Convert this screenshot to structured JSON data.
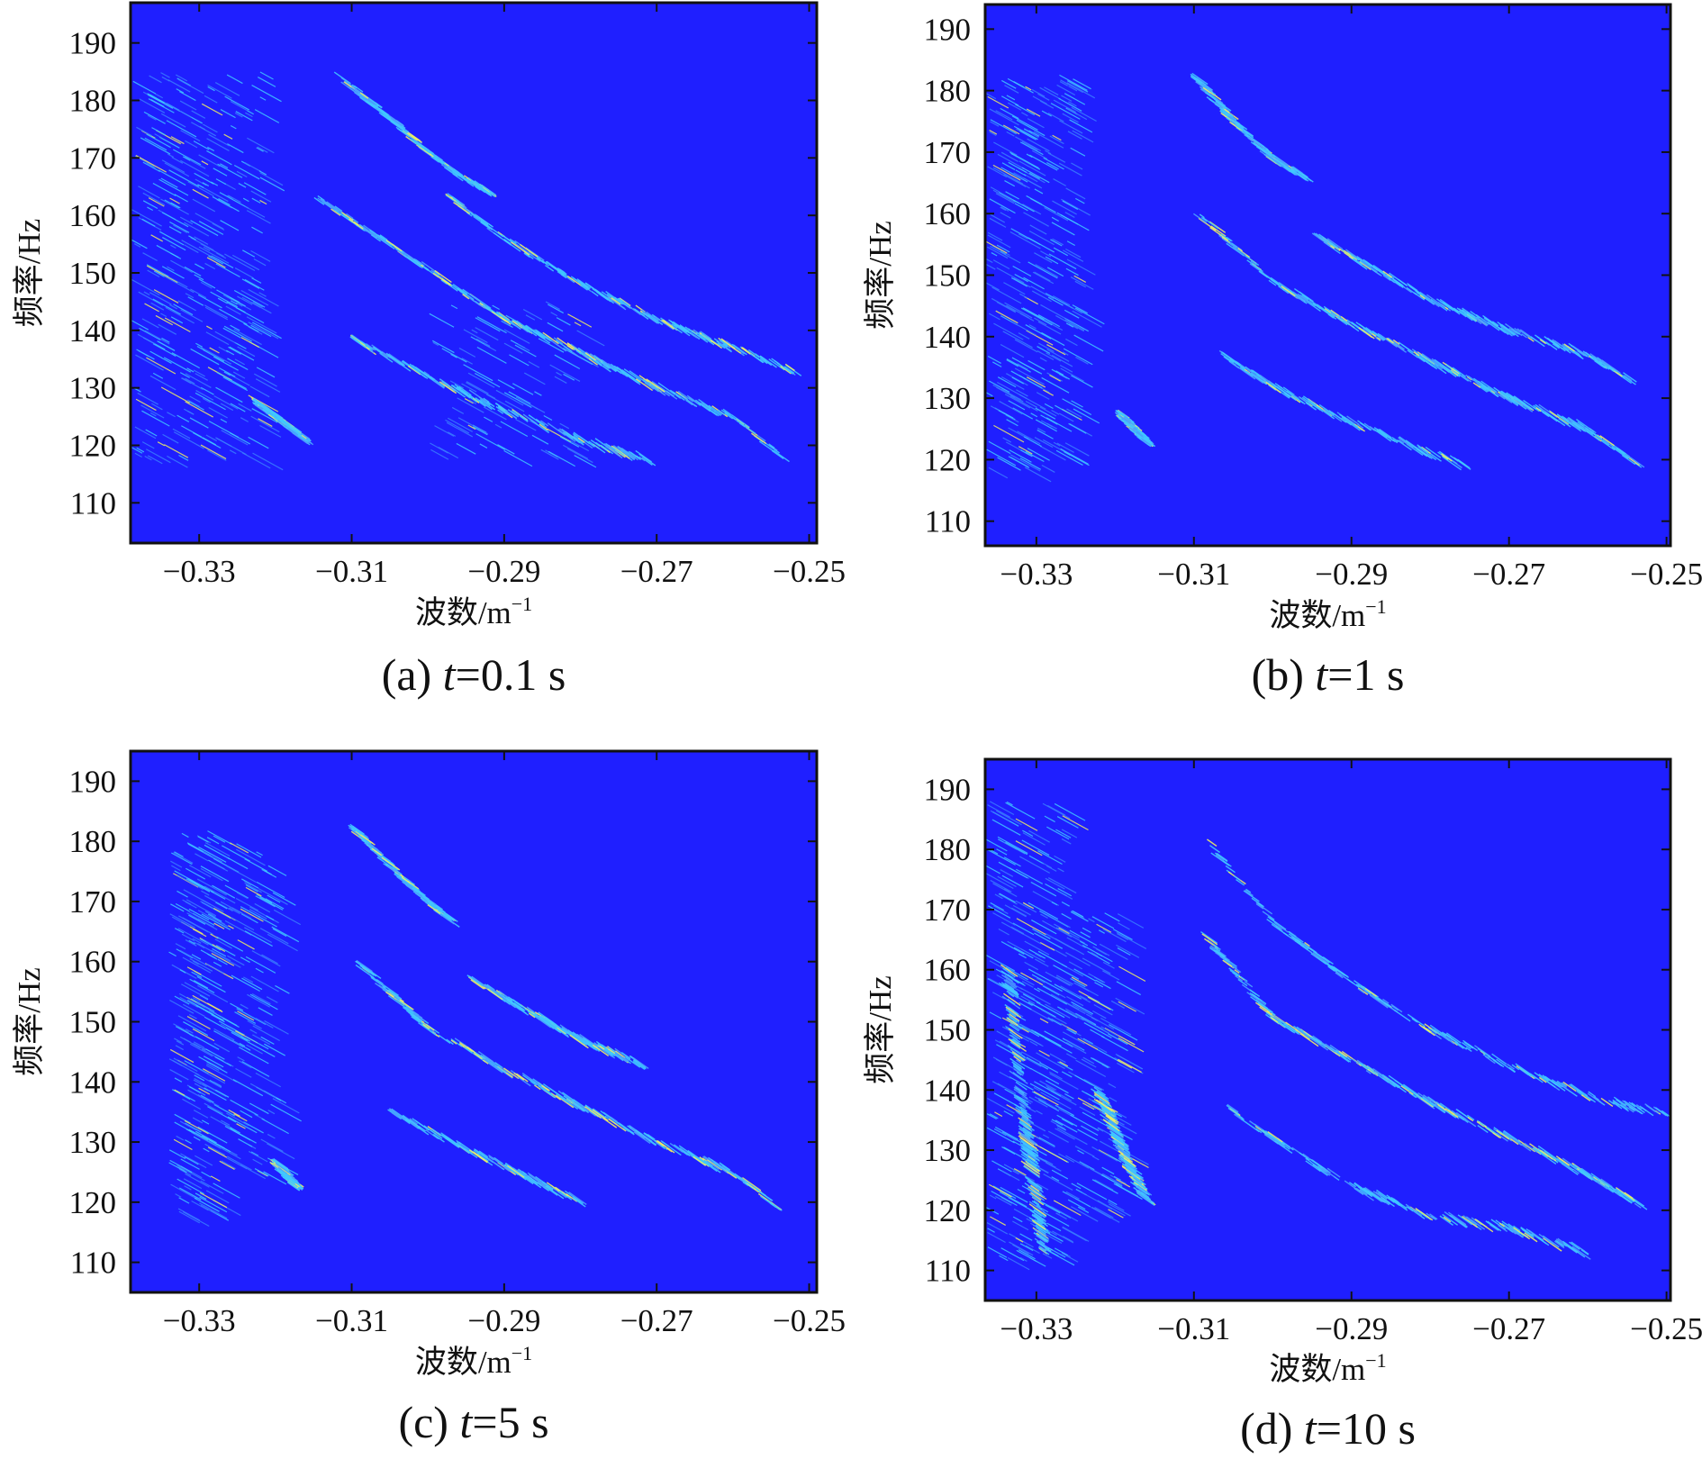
{
  "chart_data": [
    {
      "type": "heatmap",
      "caption": {
        "prefix": "(a) ",
        "var": "t",
        "rest": "=0.1 s"
      },
      "xlabel": {
        "base": "波数/m",
        "sup": "−1"
      },
      "ylabel": "频率/Hz",
      "xlim": [
        -0.339,
        -0.249
      ],
      "ylim": [
        103,
        197
      ],
      "xticks": [
        -0.33,
        -0.31,
        -0.29,
        -0.27,
        -0.25
      ],
      "xtick_labels": [
        "−0.33",
        "−0.31",
        "−0.29",
        "−0.27",
        "−0.25"
      ],
      "yticks": [
        110,
        120,
        130,
        140,
        150,
        160,
        170,
        180,
        190
      ],
      "ytick_labels": [
        "110",
        "120",
        "130",
        "140",
        "150",
        "160",
        "170",
        "180",
        "190"
      ],
      "colors": {
        "background": "#1f1fff",
        "ridge": "#40c8ff",
        "peak": "#f0f060"
      },
      "ridges": [
        {
          "points": [
            [
              -0.3145,
              163
            ],
            [
              -0.305,
              155
            ],
            [
              -0.297,
              148
            ],
            [
              -0.29,
              142
            ],
            [
              -0.28,
              136
            ],
            [
              -0.27,
              130
            ],
            [
              -0.26,
              125
            ],
            [
              -0.2535,
              118
            ]
          ],
          "intensity": 0.7
        },
        {
          "points": [
            [
              -0.297,
              163
            ],
            [
              -0.29,
              156
            ],
            [
              -0.28,
              148
            ],
            [
              -0.27,
              142
            ],
            [
              -0.26,
              137
            ],
            [
              -0.252,
              133
            ]
          ],
          "intensity": 0.5
        },
        {
          "points": [
            [
              -0.3115,
              184
            ],
            [
              -0.305,
              177
            ],
            [
              -0.3,
              171
            ],
            [
              -0.295,
              166
            ],
            [
              -0.2915,
              164
            ]
          ],
          "intensity": 0.45
        },
        {
          "points": [
            [
              -0.3095,
              138
            ],
            [
              -0.3,
              132
            ],
            [
              -0.29,
              126
            ],
            [
              -0.28,
              121
            ],
            [
              -0.27,
              117
            ]
          ],
          "intensity": 0.3
        },
        {
          "points": [
            [
              -0.322,
              127
            ],
            [
              -0.319,
              124
            ],
            [
              -0.316,
              121
            ]
          ],
          "intensity": 0.55
        }
      ],
      "clusters": [
        {
          "x": [
            -0.339,
            -0.322
          ],
          "y": [
            118,
            185
          ],
          "density": 0.9
        },
        {
          "x": [
            -0.3,
            -0.28
          ],
          "y": [
            118,
            145
          ],
          "density": 0.25
        }
      ]
    },
    {
      "type": "heatmap",
      "caption": {
        "prefix": "(b) ",
        "var": "t",
        "rest": "=1 s"
      },
      "xlabel": {
        "base": "波数/m",
        "sup": "−1"
      },
      "ylabel": "频率/Hz",
      "xlim": [
        -0.3365,
        -0.2495
      ],
      "ylim": [
        106,
        194
      ],
      "xticks": [
        -0.33,
        -0.31,
        -0.29,
        -0.27,
        -0.25
      ],
      "xtick_labels": [
        "−0.33",
        "−0.31",
        "−0.29",
        "−0.27",
        "−0.25"
      ],
      "yticks": [
        110,
        120,
        130,
        140,
        150,
        160,
        170,
        180,
        190
      ],
      "ytick_labels": [
        "110",
        "120",
        "130",
        "140",
        "150",
        "160",
        "170",
        "180",
        "190"
      ],
      "colors": {
        "background": "#1f1fff",
        "ridge": "#40c8ff",
        "peak": "#f0f060"
      },
      "ridges": [
        {
          "points": [
            [
              -0.3095,
              160
            ],
            [
              -0.305,
              155
            ],
            [
              -0.3,
              149
            ],
            [
              -0.29,
              142
            ],
            [
              -0.28,
              136
            ],
            [
              -0.27,
              130
            ],
            [
              -0.26,
              125
            ],
            [
              -0.2535,
              119
            ]
          ],
          "intensity": 0.7
        },
        {
          "points": [
            [
              -0.294,
              156
            ],
            [
              -0.29,
              153
            ],
            [
              -0.28,
              146
            ],
            [
              -0.27,
              141
            ],
            [
              -0.26,
              137
            ],
            [
              -0.2545,
              133
            ]
          ],
          "intensity": 0.45
        },
        {
          "points": [
            [
              -0.3095,
              182
            ],
            [
              -0.305,
              175
            ],
            [
              -0.3,
              169
            ],
            [
              -0.296,
              166
            ]
          ],
          "intensity": 0.4
        },
        {
          "points": [
            [
              -0.3065,
              137
            ],
            [
              -0.3,
              132
            ],
            [
              -0.29,
              126
            ],
            [
              -0.28,
              121
            ],
            [
              -0.275,
              119
            ]
          ],
          "intensity": 0.25
        },
        {
          "points": [
            [
              -0.319,
              127
            ],
            [
              -0.316,
              123
            ]
          ],
          "intensity": 0.55
        }
      ],
      "clusters": [
        {
          "x": [
            -0.3365,
            -0.325
          ],
          "y": [
            118,
            183
          ],
          "density": 0.8
        }
      ]
    },
    {
      "type": "heatmap",
      "caption": {
        "prefix": "(c) ",
        "var": "t",
        "rest": "=5 s"
      },
      "xlabel": {
        "base": "波数/m",
        "sup": "−1"
      },
      "ylabel": "频率/Hz",
      "xlim": [
        -0.339,
        -0.249
      ],
      "ylim": [
        105,
        195
      ],
      "xticks": [
        -0.33,
        -0.31,
        -0.29,
        -0.27,
        -0.25
      ],
      "xtick_labels": [
        "−0.33",
        "−0.31",
        "−0.29",
        "−0.27",
        "−0.25"
      ],
      "yticks": [
        110,
        120,
        130,
        140,
        150,
        160,
        170,
        180,
        190
      ],
      "ytick_labels": [
        "110",
        "120",
        "130",
        "140",
        "150",
        "160",
        "170",
        "180",
        "190"
      ],
      "colors": {
        "background": "#1f1fff",
        "ridge": "#40c8ff",
        "peak": "#f0f060"
      },
      "ridges": [
        {
          "points": [
            [
              -0.3085,
              159
            ],
            [
              -0.305,
              155
            ],
            [
              -0.3,
              149
            ],
            [
              -0.29,
              142
            ],
            [
              -0.28,
              136
            ],
            [
              -0.27,
              130
            ],
            [
              -0.26,
              125
            ],
            [
              -0.254,
              119
            ]
          ],
          "intensity": 0.7
        },
        {
          "points": [
            [
              -0.294,
              157
            ],
            [
              -0.29,
              154
            ],
            [
              -0.28,
              147
            ],
            [
              -0.272,
              143
            ]
          ],
          "intensity": 0.45
        },
        {
          "points": [
            [
              -0.3095,
              182
            ],
            [
              -0.305,
              176
            ],
            [
              -0.3,
              170
            ],
            [
              -0.297,
              167
            ]
          ],
          "intensity": 0.4
        },
        {
          "points": [
            [
              -0.3045,
              135
            ],
            [
              -0.3,
              132
            ],
            [
              -0.29,
              126
            ],
            [
              -0.28,
              120
            ]
          ],
          "intensity": 0.25
        },
        {
          "points": [
            [
              -0.3195,
              126
            ],
            [
              -0.3175,
              123
            ]
          ],
          "intensity": 0.55
        }
      ],
      "clusters": [
        {
          "x": [
            -0.334,
            -0.328
          ],
          "y": [
            118,
            182
          ],
          "density": 0.6
        },
        {
          "x": [
            -0.328,
            -0.32
          ],
          "y": [
            125,
            180
          ],
          "density": 0.35
        }
      ]
    },
    {
      "type": "heatmap",
      "caption": {
        "prefix": "(d) ",
        "var": "t",
        "rest": "=10 s"
      },
      "xlabel": {
        "base": "波数/m",
        "sup": "−1"
      },
      "ylabel": "频率/Hz",
      "xlim": [
        -0.3365,
        -0.2495
      ],
      "ylim": [
        105,
        195
      ],
      "xticks": [
        -0.33,
        -0.31,
        -0.29,
        -0.27,
        -0.25
      ],
      "xtick_labels": [
        "−0.33",
        "−0.31",
        "−0.29",
        "−0.27",
        "−0.25"
      ],
      "yticks": [
        110,
        120,
        130,
        140,
        150,
        160,
        170,
        180,
        190
      ],
      "ytick_labels": [
        "110",
        "120",
        "130",
        "140",
        "150",
        "160",
        "170",
        "180",
        "190"
      ],
      "colors": {
        "background": "#1f1fff",
        "ridge": "#40c8ff",
        "peak": "#f0f060"
      },
      "ridges": [
        {
          "points": [
            [
              -0.308,
              165
            ],
            [
              -0.305,
              160
            ],
            [
              -0.3,
              152
            ],
            [
              -0.29,
              145
            ],
            [
              -0.28,
              138
            ],
            [
              -0.27,
              132
            ],
            [
              -0.26,
              126
            ],
            [
              -0.2535,
              121
            ]
          ],
          "intensity": 0.75
        },
        {
          "points": [
            [
              -0.3085,
              182
            ],
            [
              -0.305,
              176
            ],
            [
              -0.3,
              168
            ],
            [
              -0.29,
              158
            ],
            [
              -0.28,
              150
            ],
            [
              -0.27,
              144
            ],
            [
              -0.26,
              139
            ],
            [
              -0.25,
              136
            ]
          ],
          "intensity": 0.5
        },
        {
          "points": [
            [
              -0.3055,
              137
            ],
            [
              -0.3,
              132
            ],
            [
              -0.29,
              124
            ],
            [
              -0.28,
              119
            ],
            [
              -0.27,
              117
            ],
            [
              -0.26,
              113
            ]
          ],
          "intensity": 0.35
        },
        {
          "points": [
            [
              -0.322,
              140
            ],
            [
              -0.32,
              133
            ],
            [
              -0.318,
              127
            ],
            [
              -0.316,
              122
            ]
          ],
          "intensity": 0.45
        },
        {
          "points": [
            [
              -0.3335,
              160
            ],
            [
              -0.332,
              140
            ],
            [
              -0.33,
              122
            ],
            [
              -0.329,
              113
            ]
          ],
          "intensity": 0.6
        }
      ],
      "clusters": [
        {
          "x": [
            -0.3365,
            -0.3265
          ],
          "y": [
            112,
            188
          ],
          "density": 0.8
        },
        {
          "x": [
            -0.3265,
            -0.3195
          ],
          "y": [
            120,
            170
          ],
          "density": 0.4
        }
      ]
    }
  ]
}
